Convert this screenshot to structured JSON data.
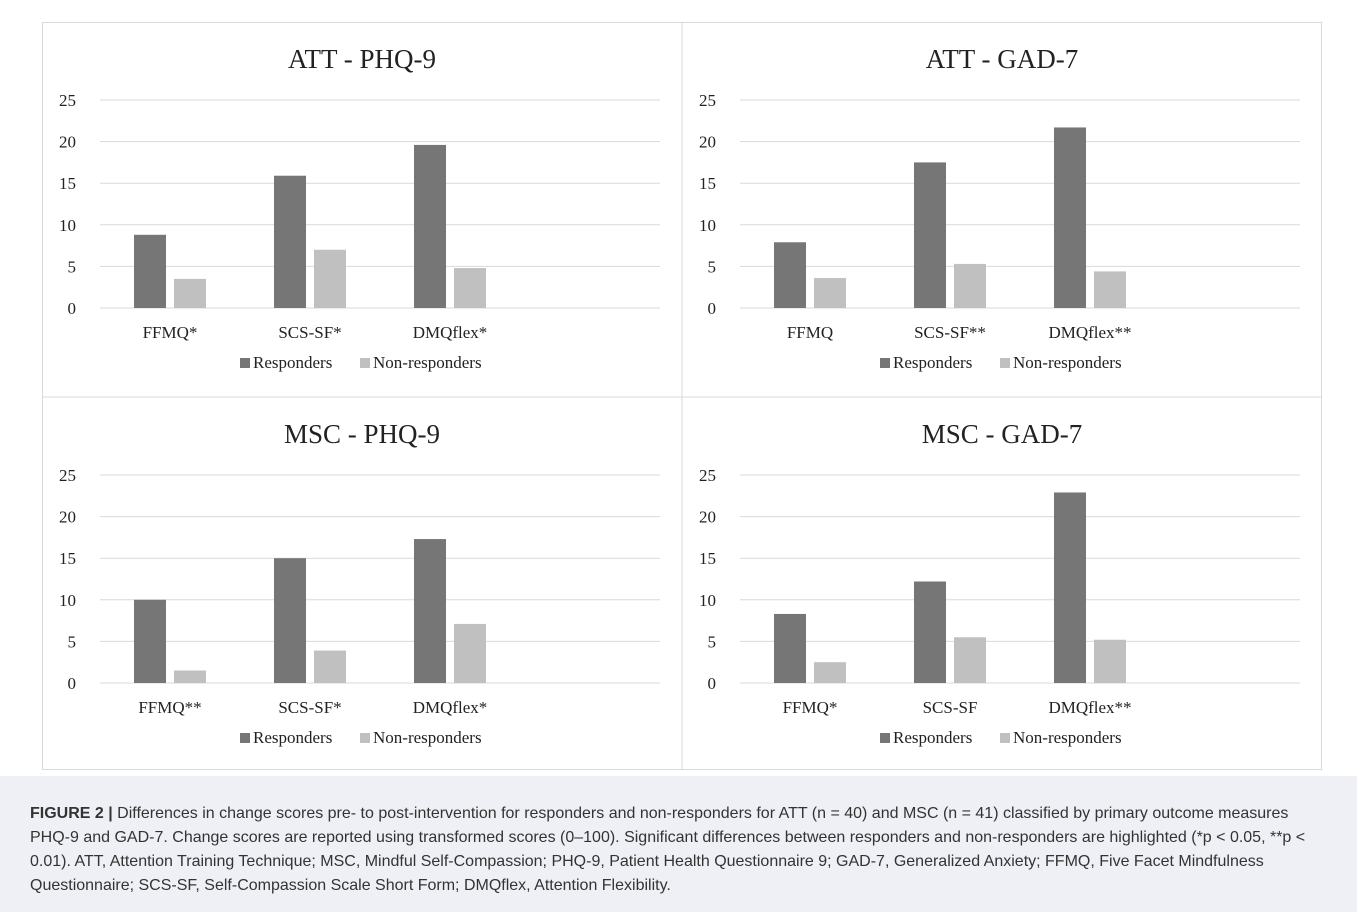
{
  "figure": {
    "caption_label": "FIGURE 2 |",
    "caption_text": "Differences in change scores pre- to post-intervention for responders and non-responders for ATT (n = 40) and MSC (n = 41) classified by primary outcome measures PHQ-9 and GAD-7. Change scores are reported using transformed scores (0–100). Significant differences between responders and non-responders are highlighted (*p < 0.05, **p < 0.01). ATT, Attention Training Technique; MSC, Mindful Self-Compassion; PHQ-9, Patient Health Questionnaire 9; GAD-7, Generalized Anxiety; FFMQ, Five Facet Mindfulness Questionnaire; SCS-SF, Self-Compassion Scale Short Form; DMQflex, Attention Flexibility."
  },
  "colors": {
    "responders": "#767676",
    "non_responders": "#c0c0c0",
    "grid": "#d9d9d9",
    "text": "#222222"
  },
  "chart_data": [
    {
      "type": "bar",
      "title": "ATT - PHQ-9",
      "categories": [
        "FFMQ*",
        "SCS-SF*",
        "DMQflex*"
      ],
      "series": [
        {
          "name": "Responders",
          "values": [
            8.8,
            15.9,
            19.6
          ]
        },
        {
          "name": "Non-responders",
          "values": [
            3.5,
            7.0,
            4.8
          ]
        }
      ],
      "yticks": [
        "0",
        "5",
        "10",
        "15",
        "20",
        "25"
      ],
      "ylim": [
        0,
        25
      ],
      "grid": true,
      "legend": "bottom"
    },
    {
      "type": "bar",
      "title": "ATT - GAD-7",
      "categories": [
        "FFMQ",
        "SCS-SF**",
        "DMQflex**"
      ],
      "series": [
        {
          "name": "Responders",
          "values": [
            7.9,
            17.5,
            21.7
          ]
        },
        {
          "name": "Non-responders",
          "values": [
            3.6,
            5.3,
            4.4
          ]
        }
      ],
      "yticks": [
        "0",
        "5",
        "10",
        "15",
        "20",
        "25"
      ],
      "ylim": [
        0,
        25
      ],
      "grid": true,
      "legend": "bottom"
    },
    {
      "type": "bar",
      "title": "MSC - PHQ-9",
      "categories": [
        "FFMQ**",
        "SCS-SF*",
        "DMQflex*"
      ],
      "series": [
        {
          "name": "Responders",
          "values": [
            10.0,
            15.0,
            17.3
          ]
        },
        {
          "name": "Non-responders",
          "values": [
            1.5,
            3.9,
            7.1
          ]
        }
      ],
      "yticks": [
        "0",
        "5",
        "10",
        "15",
        "20",
        "25"
      ],
      "ylim": [
        0,
        25
      ],
      "grid": true,
      "legend": "bottom"
    },
    {
      "type": "bar",
      "title": "MSC - GAD-7",
      "categories": [
        "FFMQ*",
        "SCS-SF",
        "DMQflex**"
      ],
      "series": [
        {
          "name": "Responders",
          "values": [
            8.3,
            12.2,
            22.9
          ]
        },
        {
          "name": "Non-responders",
          "values": [
            2.5,
            5.5,
            5.2
          ]
        }
      ],
      "yticks": [
        "0",
        "5",
        "10",
        "15",
        "20",
        "25"
      ],
      "ylim": [
        0,
        25
      ],
      "grid": true,
      "legend": "bottom"
    }
  ]
}
